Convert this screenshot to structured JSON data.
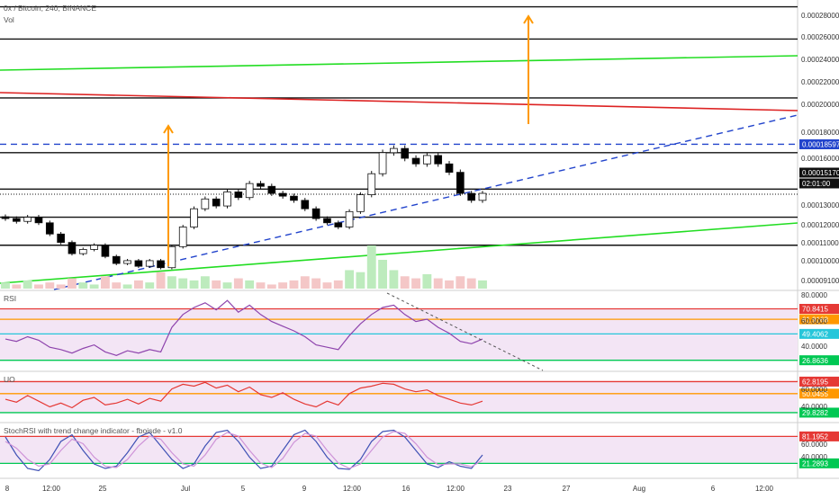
{
  "header": {
    "symbol_title": "0x / Bitcoin, 240, BINANCE",
    "vol_label": "Vol"
  },
  "colors": {
    "candle_up": "#ffffff",
    "candle_down": "#000000",
    "green_line": "#22dd22",
    "red_line": "#dd2222",
    "blue_dash": "#2244cc",
    "orange_arrow": "#ff9900",
    "rsi_line": "#8e44ad",
    "uo_line": "#e53935",
    "stoch_k": "#3f51b5",
    "stoch_d": "#ce93d8",
    "band_fill": "#f3e5f5"
  },
  "chart_data": [
    {
      "name": "price",
      "type": "candlestick",
      "x_ticks": [
        "8",
        "12:00",
        "25",
        "Jul",
        "5",
        "9",
        "12:00",
        "16",
        "12:00",
        "23",
        "27",
        "Aug",
        "6",
        "12:00"
      ],
      "y_ticks": [
        "0.00028000",
        "0.00026000",
        "0.00024000",
        "0.00022000",
        "0.00020000",
        "0.00018000",
        "0.00016000",
        "0.00013000",
        "0.00012000",
        "0.00011000",
        "0.00010000",
        "0.00009100"
      ],
      "y_range": [
        8.5e-05,
        0.000285
      ],
      "horizontal_levels": [
        0.000284,
        0.000261,
        0.000219,
        0.00018,
        0.000154,
        0.000134,
        0.000114
      ],
      "dashed_level": 0.00018597,
      "price_labels": {
        "dashed": "0.00018597",
        "current": "0.00015170",
        "countdown": "02:01:00"
      },
      "current_price": 0.0001517,
      "close": [
        0.000133,
        0.000131,
        0.000134,
        0.00013,
        0.000122,
        0.000116,
        0.000108,
        0.000111,
        0.000114,
        0.000106,
        0.000101,
        0.000103,
        9.9e-05,
        0.000103,
        9.8e-05,
        0.000113,
        0.000127,
        0.00014,
        0.000147,
        0.000142,
        0.000152,
        0.000148,
        0.000158,
        0.000156,
        0.000151,
        0.000149,
        0.000146,
        0.00014,
        0.000133,
        0.00013,
        0.000127,
        0.000138,
        0.00015,
        0.000165,
        0.00018,
        0.000183,
        0.000176,
        0.000172,
        0.000178,
        0.000172,
        0.000166,
        0.000151,
        0.000146,
        0.000151
      ]
    },
    {
      "name": "volume",
      "type": "bar",
      "values": [
        3,
        2,
        4,
        2,
        3,
        2,
        5,
        3,
        2,
        6,
        3,
        2,
        4,
        3,
        8,
        6,
        5,
        4,
        6,
        4,
        3,
        5,
        4,
        3,
        2,
        3,
        4,
        6,
        5,
        3,
        4,
        9,
        8,
        21,
        14,
        9,
        6,
        5,
        7,
        5,
        4,
        6,
        5,
        4
      ]
    },
    {
      "name": "RSI",
      "type": "line",
      "y_ticks": [
        "80.0000",
        "60.0000",
        "40.0000"
      ],
      "levels": [
        {
          "value": "70.8415",
          "color": "#e53935"
        },
        {
          "value": "61.9168",
          "color": "#ff9800"
        },
        {
          "value": "49.4062",
          "color": "#26c6da"
        },
        {
          "value": "26.8636",
          "color": "#00c853"
        }
      ],
      "y_range": [
        22,
        82
      ],
      "values": [
        45,
        43,
        47,
        44,
        38,
        36,
        33,
        37,
        40,
        34,
        31,
        35,
        33,
        36,
        34,
        55,
        66,
        72,
        76,
        70,
        78,
        68,
        74,
        66,
        60,
        56,
        52,
        47,
        40,
        38,
        36,
        48,
        58,
        66,
        72,
        74,
        66,
        60,
        62,
        55,
        50,
        43,
        41,
        45
      ]
    },
    {
      "name": "UO",
      "type": "line",
      "y_ticks": [
        "60.0000",
        "40.0000"
      ],
      "levels": [
        {
          "value": "62.8195",
          "color": "#e53935"
        },
        {
          "value": "50.0455",
          "color": "#ff9800"
        },
        {
          "value": "29.8282",
          "color": "#00c853"
        }
      ],
      "y_range": [
        25,
        68
      ],
      "values": [
        44,
        41,
        48,
        42,
        36,
        40,
        35,
        43,
        46,
        38,
        40,
        44,
        39,
        45,
        42,
        55,
        60,
        58,
        62,
        56,
        59,
        52,
        57,
        49,
        46,
        51,
        44,
        39,
        36,
        42,
        38,
        50,
        56,
        58,
        61,
        60,
        55,
        52,
        54,
        48,
        44,
        40,
        38,
        42
      ]
    },
    {
      "name": "StochRSI with trend change indicator - fboisde - v1.0",
      "type": "line",
      "y_ticks": [
        "60.0000",
        "40.0000"
      ],
      "levels": [
        {
          "value": "81.1952",
          "color": "#e53935"
        },
        {
          "value": "21.2893",
          "color": "#00c853"
        }
      ],
      "y_range": [
        0,
        100
      ],
      "k_values": [
        80,
        40,
        10,
        5,
        30,
        70,
        85,
        50,
        20,
        10,
        15,
        45,
        80,
        90,
        60,
        30,
        10,
        20,
        60,
        90,
        95,
        70,
        35,
        10,
        15,
        50,
        85,
        95,
        70,
        35,
        10,
        8,
        30,
        70,
        92,
        95,
        80,
        50,
        20,
        12,
        25,
        15,
        10,
        40
      ],
      "d_values": [
        70,
        55,
        30,
        15,
        20,
        50,
        75,
        65,
        35,
        15,
        12,
        30,
        60,
        82,
        75,
        45,
        20,
        15,
        40,
        75,
        90,
        82,
        50,
        22,
        12,
        32,
        68,
        88,
        82,
        50,
        22,
        10,
        20,
        50,
        80,
        92,
        88,
        65,
        35,
        18,
        20,
        20,
        14,
        28
      ]
    }
  ]
}
